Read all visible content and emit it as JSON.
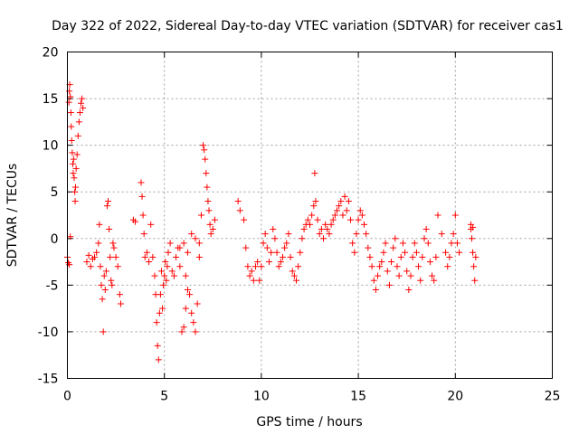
{
  "chart_data": {
    "type": "scatter",
    "title": "Day 322 of 2022, Sidereal Day-to-day VTEC variation (SDTVAR) for receiver cas1",
    "xlabel": "GPS time / hours",
    "ylabel": "SDTVAR / TECUs",
    "xlim": [
      0,
      25
    ],
    "ylim": [
      -15,
      20
    ],
    "xticks": [
      "0",
      "5",
      "10",
      "15",
      "20",
      "25"
    ],
    "yticks": [
      "20",
      "15",
      "10",
      "5",
      "0",
      "-5",
      "-10",
      "-15"
    ],
    "grid": true,
    "marker": "plus",
    "color": "#ff0000",
    "series": [
      {
        "name": "SDTVAR",
        "points": [
          [
            0.0,
            -2.0
          ],
          [
            0.05,
            -2.6
          ],
          [
            0.08,
            14.6
          ],
          [
            0.1,
            15.8
          ],
          [
            0.12,
            16.5
          ],
          [
            0.15,
            15.2
          ],
          [
            0.18,
            13.5
          ],
          [
            0.2,
            12.0
          ],
          [
            0.22,
            10.5
          ],
          [
            0.25,
            9.2
          ],
          [
            0.28,
            8.0
          ],
          [
            0.3,
            7.0
          ],
          [
            0.32,
            8.5
          ],
          [
            0.35,
            6.5
          ],
          [
            0.38,
            5.0
          ],
          [
            0.4,
            4.0
          ],
          [
            0.42,
            5.5
          ],
          [
            0.45,
            7.5
          ],
          [
            0.5,
            9.0
          ],
          [
            0.55,
            11.0
          ],
          [
            0.6,
            12.5
          ],
          [
            0.65,
            13.5
          ],
          [
            0.7,
            14.5
          ],
          [
            0.75,
            15.0
          ],
          [
            0.8,
            14.0
          ],
          [
            0.1,
            -2.8
          ],
          [
            0.15,
            0.2
          ],
          [
            1.0,
            -2.5
          ],
          [
            1.1,
            -1.8
          ],
          [
            1.2,
            -3.0
          ],
          [
            1.3,
            -2.2
          ],
          [
            1.4,
            -2.0
          ],
          [
            1.5,
            -1.5
          ],
          [
            1.6,
            -0.5
          ],
          [
            1.65,
            1.5
          ],
          [
            1.7,
            -3.0
          ],
          [
            1.75,
            -5.0
          ],
          [
            1.8,
            -6.5
          ],
          [
            1.85,
            -10.0
          ],
          [
            1.9,
            -4.0
          ],
          [
            1.95,
            -5.5
          ],
          [
            2.0,
            -3.5
          ],
          [
            2.05,
            3.5
          ],
          [
            2.1,
            4.0
          ],
          [
            2.15,
            1.0
          ],
          [
            2.2,
            -2.0
          ],
          [
            2.25,
            -4.5
          ],
          [
            2.3,
            -5.0
          ],
          [
            2.35,
            -0.5
          ],
          [
            2.4,
            -1.0
          ],
          [
            2.5,
            -2.0
          ],
          [
            2.6,
            -3.0
          ],
          [
            2.7,
            -6.0
          ],
          [
            2.75,
            -7.0
          ],
          [
            3.4,
            2.0
          ],
          [
            3.5,
            1.8
          ],
          [
            3.8,
            6.0
          ],
          [
            3.85,
            4.5
          ],
          [
            3.9,
            2.5
          ],
          [
            3.95,
            0.5
          ],
          [
            4.0,
            -2.0
          ],
          [
            4.1,
            -1.5
          ],
          [
            4.2,
            -2.5
          ],
          [
            4.3,
            1.5
          ],
          [
            4.4,
            -2.0
          ],
          [
            4.5,
            -4.0
          ],
          [
            4.55,
            -6.0
          ],
          [
            4.6,
            -9.0
          ],
          [
            4.65,
            -11.5
          ],
          [
            4.7,
            -13.0
          ],
          [
            4.75,
            -8.0
          ],
          [
            4.8,
            -6.0
          ],
          [
            4.85,
            -3.5
          ],
          [
            4.9,
            -7.5
          ],
          [
            4.95,
            -5.0
          ],
          [
            5.0,
            -4.0
          ],
          [
            5.05,
            -2.5
          ],
          [
            5.1,
            -4.5
          ],
          [
            5.15,
            -3.0
          ],
          [
            5.2,
            -1.5
          ],
          [
            5.3,
            -0.5
          ],
          [
            5.4,
            -3.5
          ],
          [
            5.5,
            -4.0
          ],
          [
            5.6,
            -2.0
          ],
          [
            5.7,
            -1.0
          ],
          [
            5.8,
            -1.0
          ],
          [
            5.9,
            -10.0
          ],
          [
            6.0,
            -9.5
          ],
          [
            6.1,
            -7.5
          ],
          [
            6.2,
            -5.5
          ],
          [
            6.3,
            -6.0
          ],
          [
            6.4,
            -8.0
          ],
          [
            6.5,
            -9.0
          ],
          [
            6.6,
            -10.0
          ],
          [
            6.7,
            -7.0
          ],
          [
            6.8,
            -2.0
          ],
          [
            6.9,
            2.5
          ],
          [
            7.0,
            10.0
          ],
          [
            7.05,
            9.5
          ],
          [
            7.1,
            8.5
          ],
          [
            7.15,
            7.0
          ],
          [
            7.2,
            5.5
          ],
          [
            7.25,
            4.0
          ],
          [
            7.3,
            3.0
          ],
          [
            7.35,
            1.5
          ],
          [
            7.4,
            0.5
          ],
          [
            7.5,
            1.0
          ],
          [
            7.6,
            2.0
          ],
          [
            6.0,
            -0.5
          ],
          [
            6.2,
            -1.5
          ],
          [
            6.4,
            0.5
          ],
          [
            6.6,
            0.0
          ],
          [
            6.8,
            -0.5
          ],
          [
            5.8,
            -3.0
          ],
          [
            6.1,
            -4.0
          ],
          [
            8.8,
            4.0
          ],
          [
            8.9,
            3.0
          ],
          [
            9.1,
            2.0
          ],
          [
            9.2,
            -1.0
          ],
          [
            9.3,
            -3.0
          ],
          [
            9.4,
            -4.0
          ],
          [
            9.5,
            -3.5
          ],
          [
            9.6,
            -4.5
          ],
          [
            9.7,
            -3.0
          ],
          [
            9.8,
            -2.5
          ],
          [
            9.9,
            -4.5
          ],
          [
            10.0,
            -3.0
          ],
          [
            10.1,
            -0.5
          ],
          [
            10.2,
            0.5
          ],
          [
            10.3,
            -1.0
          ],
          [
            10.4,
            -2.5
          ],
          [
            10.5,
            -1.5
          ],
          [
            10.6,
            1.0
          ],
          [
            10.7,
            0.0
          ],
          [
            10.8,
            -1.5
          ],
          [
            10.9,
            -3.0
          ],
          [
            11.0,
            -2.5
          ],
          [
            11.1,
            -2.0
          ],
          [
            11.2,
            -1.0
          ],
          [
            11.3,
            -0.5
          ],
          [
            11.4,
            0.5
          ],
          [
            11.5,
            -2.0
          ],
          [
            11.6,
            -3.5
          ],
          [
            11.7,
            -4.0
          ],
          [
            11.8,
            -4.5
          ],
          [
            11.9,
            -3.0
          ],
          [
            12.0,
            -1.5
          ],
          [
            12.1,
            0.0
          ],
          [
            12.2,
            1.0
          ],
          [
            12.3,
            1.5
          ],
          [
            12.4,
            2.0
          ],
          [
            12.5,
            1.5
          ],
          [
            12.6,
            2.5
          ],
          [
            12.7,
            3.5
          ],
          [
            12.75,
            7.0
          ],
          [
            12.8,
            4.0
          ],
          [
            12.9,
            2.0
          ],
          [
            13.0,
            0.5
          ],
          [
            13.1,
            1.0
          ],
          [
            13.2,
            0.0
          ],
          [
            13.3,
            1.5
          ],
          [
            13.4,
            1.0
          ],
          [
            13.5,
            0.5
          ],
          [
            13.6,
            1.5
          ],
          [
            13.7,
            2.0
          ],
          [
            13.8,
            2.5
          ],
          [
            13.9,
            3.0
          ],
          [
            14.0,
            3.5
          ],
          [
            14.1,
            4.0
          ],
          [
            14.2,
            2.5
          ],
          [
            14.3,
            4.5
          ],
          [
            14.4,
            3.0
          ],
          [
            14.5,
            4.0
          ],
          [
            14.6,
            2.0
          ],
          [
            14.7,
            -0.5
          ],
          [
            14.8,
            -1.5
          ],
          [
            14.9,
            0.5
          ],
          [
            15.0,
            2.0
          ],
          [
            15.1,
            3.0
          ],
          [
            15.2,
            2.5
          ],
          [
            15.3,
            1.5
          ],
          [
            15.4,
            0.5
          ],
          [
            15.5,
            -1.0
          ],
          [
            15.6,
            -2.0
          ],
          [
            15.7,
            -3.0
          ],
          [
            15.8,
            -4.5
          ],
          [
            15.9,
            -5.5
          ],
          [
            16.0,
            -4.0
          ],
          [
            16.1,
            -3.0
          ],
          [
            16.2,
            -2.5
          ],
          [
            16.3,
            -1.5
          ],
          [
            16.4,
            -0.5
          ],
          [
            16.5,
            -3.5
          ],
          [
            16.6,
            -5.0
          ],
          [
            16.7,
            -2.5
          ],
          [
            16.8,
            -1.0
          ],
          [
            16.9,
            0.0
          ],
          [
            17.0,
            -3.0
          ],
          [
            17.1,
            -4.0
          ],
          [
            17.2,
            -2.0
          ],
          [
            17.3,
            -0.5
          ],
          [
            17.4,
            -1.5
          ],
          [
            17.5,
            -3.5
          ],
          [
            17.6,
            -5.5
          ],
          [
            17.7,
            -4.0
          ],
          [
            17.8,
            -2.0
          ],
          [
            17.9,
            -0.5
          ],
          [
            18.0,
            -1.5
          ],
          [
            18.1,
            -3.0
          ],
          [
            18.2,
            -4.5
          ],
          [
            18.3,
            -2.0
          ],
          [
            18.4,
            0.0
          ],
          [
            18.5,
            1.0
          ],
          [
            18.6,
            -0.5
          ],
          [
            18.7,
            -2.5
          ],
          [
            18.8,
            -4.0
          ],
          [
            18.9,
            -4.5
          ],
          [
            19.0,
            -2.0
          ],
          [
            19.1,
            2.5
          ],
          [
            19.3,
            0.5
          ],
          [
            19.5,
            -1.5
          ],
          [
            19.6,
            -3.0
          ],
          [
            19.7,
            -2.0
          ],
          [
            19.8,
            -0.5
          ],
          [
            19.9,
            0.5
          ],
          [
            20.0,
            2.5
          ],
          [
            20.1,
            -0.5
          ],
          [
            20.2,
            -1.5
          ],
          [
            20.8,
            1.0
          ],
          [
            20.85,
            0.0
          ],
          [
            20.9,
            -1.5
          ],
          [
            20.95,
            -3.0
          ],
          [
            21.0,
            -4.5
          ],
          [
            21.05,
            -2.0
          ],
          [
            20.8,
            1.5
          ],
          [
            20.9,
            1.2
          ]
        ]
      }
    ]
  }
}
